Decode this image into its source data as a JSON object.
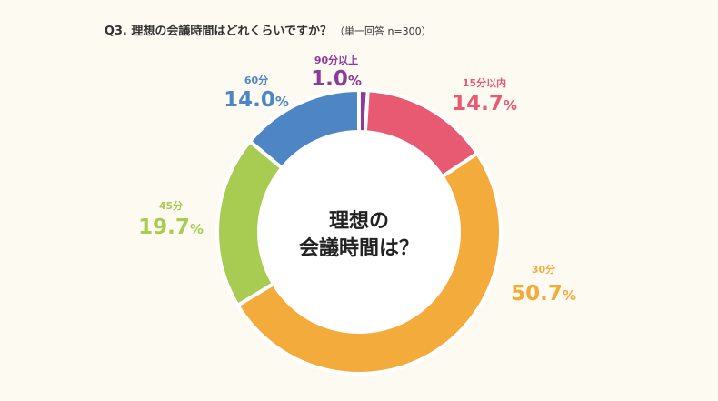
{
  "chart_data": {
    "type": "pie",
    "variant": "donut",
    "title": "Q3. 理想の会議時間はどれくらいですか？",
    "subtitle": "（単一回答  n=300）",
    "center_label": [
      "理想の",
      "会議時間は？"
    ],
    "categories": [
      "90分以上",
      "15分以内",
      "30分",
      "45分",
      "60分"
    ],
    "values": [
      1.0,
      14.7,
      50.7,
      19.7,
      14.0
    ],
    "value_suffix": "%",
    "colors": [
      "#8e3a9a",
      "#e85a71",
      "#f3ab3c",
      "#a8cc52",
      "#4e86c5"
    ]
  }
}
